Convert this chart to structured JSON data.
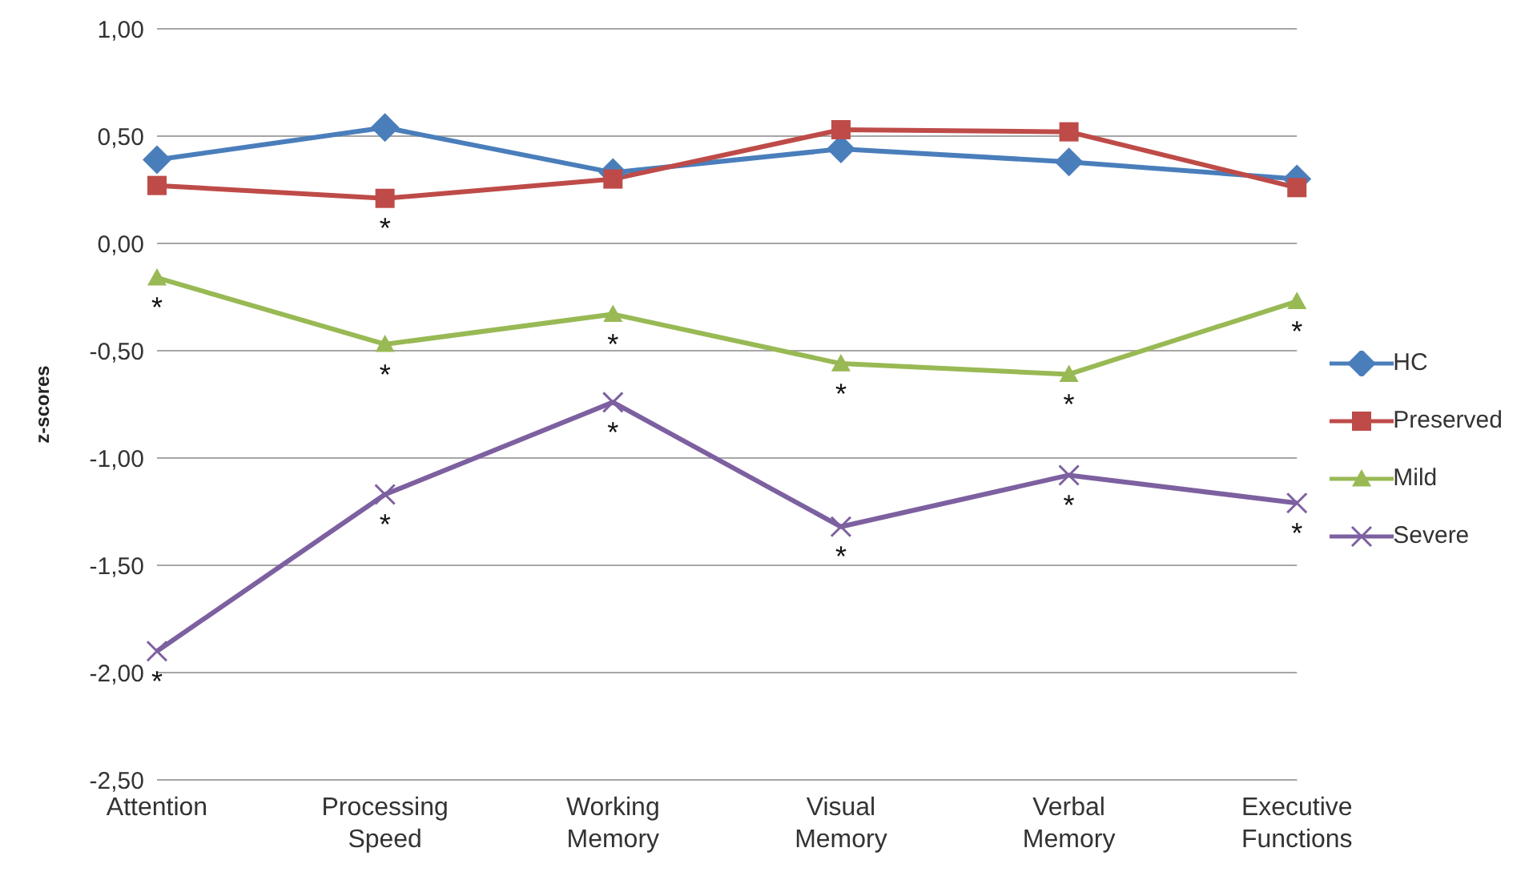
{
  "chart_data": {
    "type": "line",
    "ylabel": "z-scores",
    "categories": [
      "Attention",
      "Processing Speed",
      "Working Memory",
      "Visual Memory",
      "Verbal Memory",
      "Executive Functions"
    ],
    "series": [
      {
        "name": "HC",
        "color": "#4a7ebb",
        "marker": "diamond",
        "values": [
          0.39,
          0.54,
          0.33,
          0.44,
          0.38,
          0.3
        ]
      },
      {
        "name": "Preserved",
        "color": "#be4b48",
        "marker": "square",
        "values": [
          0.27,
          0.21,
          0.3,
          0.53,
          0.52,
          0.26
        ]
      },
      {
        "name": "Mild",
        "color": "#98b954",
        "marker": "triangle",
        "values": [
          -0.16,
          -0.47,
          -0.33,
          -0.56,
          -0.61,
          -0.27
        ]
      },
      {
        "name": "Severe",
        "color": "#7d60a0",
        "marker": "cross",
        "values": [
          -1.9,
          -1.17,
          -0.74,
          -1.32,
          -1.08,
          -1.21
        ]
      }
    ],
    "ylim": [
      -2.5,
      1.0
    ],
    "yticks": [
      {
        "value": -2.5,
        "label": "-2,50"
      },
      {
        "value": -2.0,
        "label": "-2,00"
      },
      {
        "value": -1.5,
        "label": "-1,50"
      },
      {
        "value": -1.0,
        "label": "-1,00"
      },
      {
        "value": -0.5,
        "label": "-0,50"
      },
      {
        "value": 0.0,
        "label": "0,00"
      },
      {
        "value": 0.5,
        "label": "0,50"
      },
      {
        "value": 1.0,
        "label": "1,00"
      }
    ],
    "grid": "y",
    "legend": "right",
    "annotations": [
      {
        "text": "*",
        "x": "Processing Speed",
        "y": 0.21
      },
      {
        "text": "*",
        "x": "Attention",
        "y": -0.16
      },
      {
        "text": "*",
        "x": "Processing Speed",
        "y": -0.47
      },
      {
        "text": "*",
        "x": "Working Memory",
        "y": -0.33
      },
      {
        "text": "*",
        "x": "Visual Memory",
        "y": -0.56
      },
      {
        "text": "*",
        "x": "Verbal Memory",
        "y": -0.61
      },
      {
        "text": "*",
        "x": "Executive Functions",
        "y": -0.27
      },
      {
        "text": "*",
        "x": "Attention",
        "y": -1.9
      },
      {
        "text": "*",
        "x": "Processing Speed",
        "y": -1.17
      },
      {
        "text": "*",
        "x": "Working Memory",
        "y": -0.74
      },
      {
        "text": "*",
        "x": "Visual Memory",
        "y": -1.32
      },
      {
        "text": "*",
        "x": "Verbal Memory",
        "y": -1.08
      },
      {
        "text": "*",
        "x": "Executive Functions",
        "y": -1.21
      }
    ]
  }
}
